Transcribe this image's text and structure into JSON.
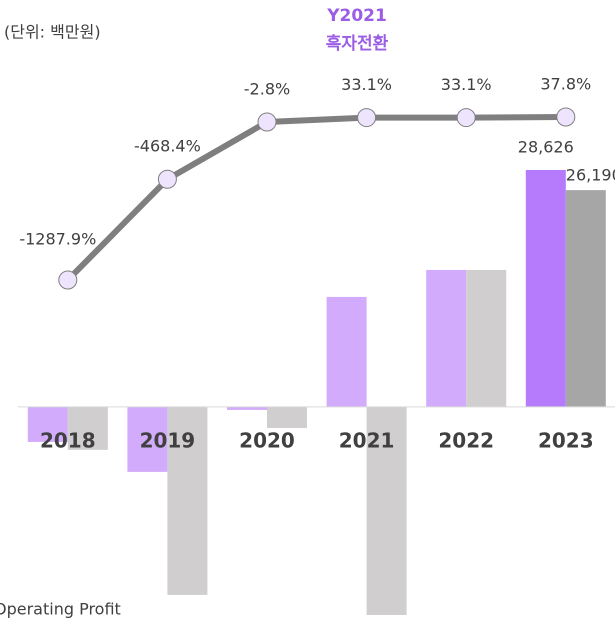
{
  "chart_data": {
    "type": "bar",
    "unit_note": "(단위: 백만원)",
    "title": "Y2021",
    "subtitle": "흑자전환",
    "categories": [
      "2018",
      "2019",
      "2020",
      "2021",
      "2022",
      "2023"
    ],
    "ylim": [
      -25500,
      30000
    ],
    "y2lim": [
      -1600,
      100
    ],
    "series": [
      {
        "colors": [
          "#d3abfc",
          "#d3abfc",
          "#d3abfc",
          "#d3abfc",
          "#d3abfc",
          "#b57bfc"
        ],
        "values": [
          -4230,
          -7850,
          -360,
          13290,
          16550,
          28626
        ],
        "value_labels": [
          null,
          null,
          null,
          null,
          null,
          "28,626"
        ]
      },
      {
        "name": "Operating Profit",
        "colors": [
          "#d0cece",
          "#d0cece",
          "#d0cece",
          "#d0cece",
          "#d0cece",
          "#a6a6a6"
        ],
        "values": [
          -5190,
          -22710,
          -2540,
          -25130,
          16550,
          26190
        ],
        "value_labels": [
          null,
          null,
          null,
          null,
          null,
          "26,190"
        ]
      },
      {
        "type": "line",
        "axis": "y2",
        "color": "#7f7f7f",
        "values": [
          -1287.9,
          -468.4,
          -2.8,
          33.1,
          33.1,
          37.8
        ],
        "value_labels": [
          "-1287.9%",
          "-468.4%",
          "-2.8%",
          "33.1%",
          "33.1%",
          "37.8%"
        ]
      }
    ]
  }
}
